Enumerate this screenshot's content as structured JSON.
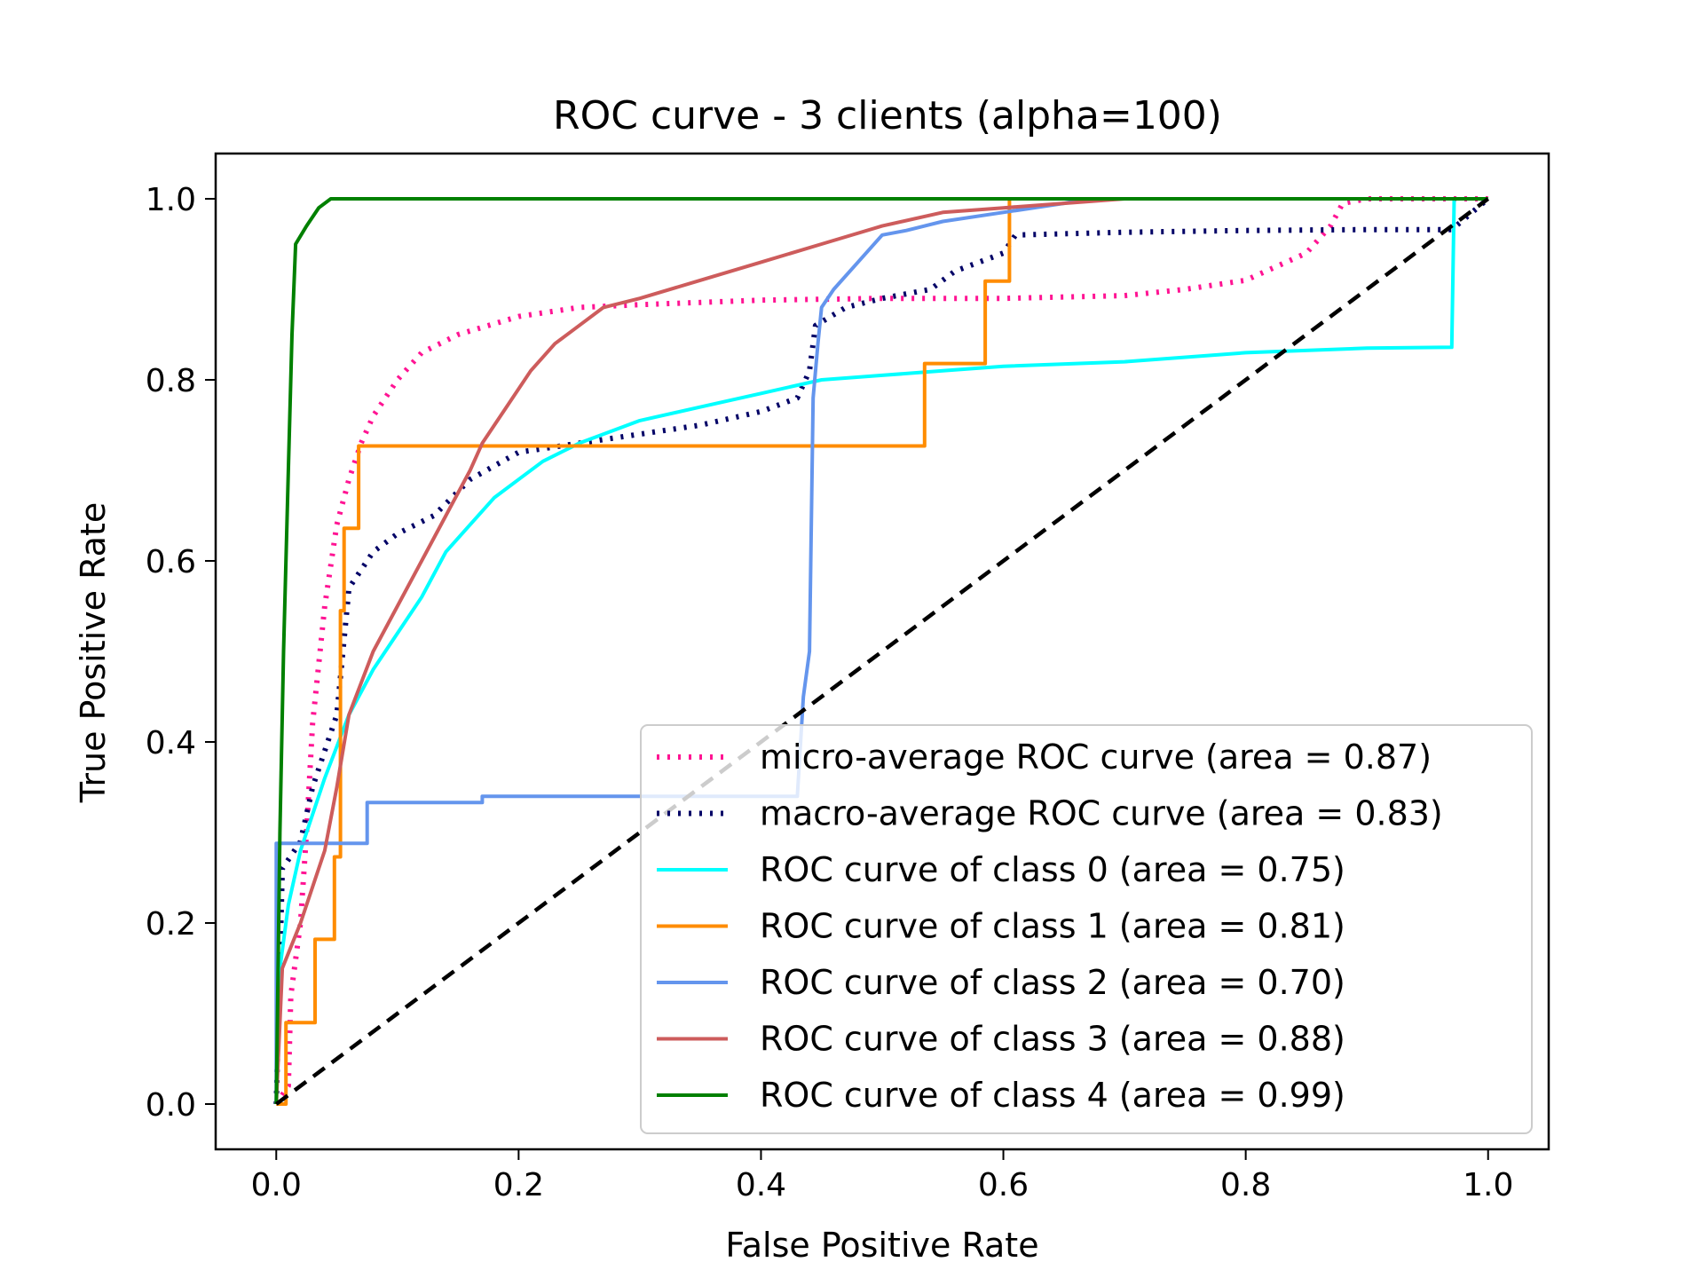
{
  "chart_data": {
    "type": "line",
    "title": "ROC curve - 3 clients (alpha=100)",
    "xlabel": "False Positive Rate",
    "ylabel": "True Positive Rate",
    "xlim": [
      -0.05,
      1.05
    ],
    "ylim": [
      -0.05,
      1.05
    ],
    "xticks": [
      "0.0",
      "0.2",
      "0.4",
      "0.6",
      "0.8",
      "1.0"
    ],
    "yticks": [
      "0.0",
      "0.2",
      "0.4",
      "0.6",
      "0.8",
      "1.0"
    ],
    "grid": false,
    "legend_position": "lower-right",
    "series": [
      {
        "name": "micro-average ROC curve (area = 0.87)",
        "color": "#ff1493",
        "style": "dotted",
        "points": [
          [
            0.0,
            0.0
          ],
          [
            0.01,
            0.02
          ],
          [
            0.012,
            0.12
          ],
          [
            0.02,
            0.2
          ],
          [
            0.025,
            0.3
          ],
          [
            0.03,
            0.42
          ],
          [
            0.04,
            0.55
          ],
          [
            0.05,
            0.64
          ],
          [
            0.06,
            0.69
          ],
          [
            0.07,
            0.73
          ],
          [
            0.08,
            0.76
          ],
          [
            0.1,
            0.8
          ],
          [
            0.12,
            0.83
          ],
          [
            0.15,
            0.85
          ],
          [
            0.2,
            0.87
          ],
          [
            0.25,
            0.88
          ],
          [
            0.3,
            0.883
          ],
          [
            0.4,
            0.888
          ],
          [
            0.5,
            0.89
          ],
          [
            0.6,
            0.89
          ],
          [
            0.7,
            0.893
          ],
          [
            0.75,
            0.9
          ],
          [
            0.8,
            0.91
          ],
          [
            0.85,
            0.94
          ],
          [
            0.87,
            0.97
          ],
          [
            0.88,
            0.995
          ],
          [
            0.9,
            1.0
          ],
          [
            1.0,
            1.0
          ]
        ]
      },
      {
        "name": "macro-average ROC curve (area = 0.83)",
        "color": "#000066",
        "style": "dotted",
        "points": [
          [
            0.0,
            0.0
          ],
          [
            0.005,
            0.26
          ],
          [
            0.02,
            0.29
          ],
          [
            0.03,
            0.35
          ],
          [
            0.05,
            0.43
          ],
          [
            0.055,
            0.5
          ],
          [
            0.06,
            0.57
          ],
          [
            0.08,
            0.61
          ],
          [
            0.1,
            0.63
          ],
          [
            0.13,
            0.65
          ],
          [
            0.16,
            0.69
          ],
          [
            0.2,
            0.72
          ],
          [
            0.25,
            0.73
          ],
          [
            0.3,
            0.74
          ],
          [
            0.35,
            0.75
          ],
          [
            0.4,
            0.765
          ],
          [
            0.43,
            0.78
          ],
          [
            0.44,
            0.81
          ],
          [
            0.445,
            0.86
          ],
          [
            0.47,
            0.88
          ],
          [
            0.5,
            0.89
          ],
          [
            0.54,
            0.9
          ],
          [
            0.56,
            0.92
          ],
          [
            0.6,
            0.94
          ],
          [
            0.61,
            0.96
          ],
          [
            0.7,
            0.963
          ],
          [
            0.8,
            0.965
          ],
          [
            0.9,
            0.966
          ],
          [
            0.97,
            0.966
          ],
          [
            1.0,
            1.0
          ]
        ]
      },
      {
        "name": "ROC curve of class 0 (area = 0.75)",
        "color": "#00ffff",
        "style": "solid",
        "points": [
          [
            0.0,
            0.0
          ],
          [
            0.003,
            0.15
          ],
          [
            0.01,
            0.22
          ],
          [
            0.02,
            0.28
          ],
          [
            0.04,
            0.36
          ],
          [
            0.06,
            0.43
          ],
          [
            0.08,
            0.48
          ],
          [
            0.1,
            0.52
          ],
          [
            0.12,
            0.56
          ],
          [
            0.14,
            0.61
          ],
          [
            0.16,
            0.64
          ],
          [
            0.18,
            0.67
          ],
          [
            0.2,
            0.69
          ],
          [
            0.22,
            0.71
          ],
          [
            0.25,
            0.73
          ],
          [
            0.3,
            0.755
          ],
          [
            0.35,
            0.77
          ],
          [
            0.4,
            0.785
          ],
          [
            0.45,
            0.8
          ],
          [
            0.5,
            0.805
          ],
          [
            0.55,
            0.81
          ],
          [
            0.6,
            0.815
          ],
          [
            0.7,
            0.82
          ],
          [
            0.8,
            0.83
          ],
          [
            0.9,
            0.835
          ],
          [
            0.97,
            0.836
          ],
          [
            0.972,
            1.0
          ],
          [
            1.0,
            1.0
          ]
        ]
      },
      {
        "name": "ROC curve of class 1 (area = 0.81)",
        "color": "#ff8c00",
        "style": "solid",
        "points": [
          [
            0.0,
            0.0
          ],
          [
            0.008,
            0.0
          ],
          [
            0.008,
            0.09
          ],
          [
            0.032,
            0.09
          ],
          [
            0.032,
            0.182
          ],
          [
            0.048,
            0.182
          ],
          [
            0.048,
            0.273
          ],
          [
            0.053,
            0.273
          ],
          [
            0.053,
            0.545
          ],
          [
            0.056,
            0.545
          ],
          [
            0.056,
            0.636
          ],
          [
            0.068,
            0.636
          ],
          [
            0.068,
            0.727
          ],
          [
            0.535,
            0.727
          ],
          [
            0.535,
            0.818
          ],
          [
            0.585,
            0.818
          ],
          [
            0.585,
            0.909
          ],
          [
            0.605,
            0.909
          ],
          [
            0.605,
            1.0
          ],
          [
            1.0,
            1.0
          ]
        ]
      },
      {
        "name": "ROC curve of class 2 (area = 0.70)",
        "color": "#6495ed",
        "style": "solid",
        "points": [
          [
            0.0,
            0.0
          ],
          [
            0.0,
            0.288
          ],
          [
            0.075,
            0.288
          ],
          [
            0.075,
            0.333
          ],
          [
            0.17,
            0.333
          ],
          [
            0.17,
            0.34
          ],
          [
            0.43,
            0.34
          ],
          [
            0.435,
            0.45
          ],
          [
            0.44,
            0.5
          ],
          [
            0.443,
            0.78
          ],
          [
            0.447,
            0.84
          ],
          [
            0.45,
            0.88
          ],
          [
            0.46,
            0.9
          ],
          [
            0.48,
            0.93
          ],
          [
            0.5,
            0.96
          ],
          [
            0.52,
            0.965
          ],
          [
            0.55,
            0.975
          ],
          [
            0.6,
            0.985
          ],
          [
            0.65,
            0.995
          ],
          [
            0.67,
            1.0
          ],
          [
            1.0,
            1.0
          ]
        ]
      },
      {
        "name": "ROC curve of class 3 (area = 0.88)",
        "color": "#cd5c5c",
        "style": "solid",
        "points": [
          [
            0.0,
            0.0
          ],
          [
            0.005,
            0.15
          ],
          [
            0.02,
            0.2
          ],
          [
            0.04,
            0.28
          ],
          [
            0.05,
            0.35
          ],
          [
            0.06,
            0.43
          ],
          [
            0.08,
            0.5
          ],
          [
            0.1,
            0.55
          ],
          [
            0.12,
            0.6
          ],
          [
            0.14,
            0.65
          ],
          [
            0.16,
            0.7
          ],
          [
            0.17,
            0.73
          ],
          [
            0.19,
            0.77
          ],
          [
            0.21,
            0.81
          ],
          [
            0.23,
            0.84
          ],
          [
            0.25,
            0.86
          ],
          [
            0.27,
            0.88
          ],
          [
            0.3,
            0.89
          ],
          [
            0.35,
            0.91
          ],
          [
            0.4,
            0.93
          ],
          [
            0.45,
            0.95
          ],
          [
            0.5,
            0.97
          ],
          [
            0.55,
            0.985
          ],
          [
            0.6,
            0.99
          ],
          [
            0.65,
            0.995
          ],
          [
            0.7,
            1.0
          ],
          [
            1.0,
            1.0
          ]
        ]
      },
      {
        "name": "ROC curve of class 4 (area = 0.99)",
        "color": "#008000",
        "style": "solid",
        "points": [
          [
            0.0,
            0.0
          ],
          [
            0.003,
            0.3
          ],
          [
            0.006,
            0.5
          ],
          [
            0.01,
            0.7
          ],
          [
            0.013,
            0.85
          ],
          [
            0.016,
            0.95
          ],
          [
            0.025,
            0.97
          ],
          [
            0.035,
            0.99
          ],
          [
            0.045,
            1.0
          ],
          [
            1.0,
            1.0
          ]
        ]
      }
    ],
    "reference_line": {
      "color": "#000000",
      "style": "dashed",
      "points": [
        [
          0.0,
          0.0
        ],
        [
          1.0,
          1.0
        ]
      ]
    }
  }
}
